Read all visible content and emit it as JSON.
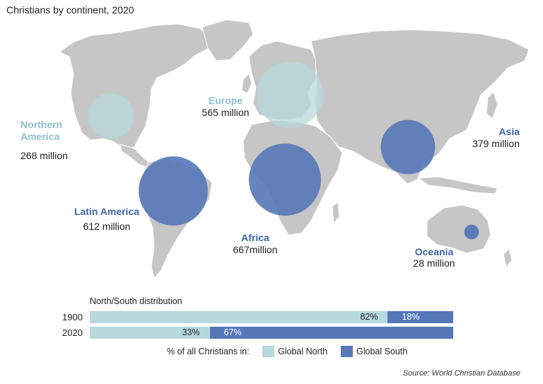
{
  "title": "Christians by continent, 2020",
  "colors": {
    "land": "#c6c6c6",
    "global_north": "#b7d8de",
    "global_south": "#5577b7",
    "north_label": "#8ec0cb",
    "south_label": "#3b67a6"
  },
  "regions": [
    {
      "id": "northern-america",
      "name_line1": "Northern",
      "name_line2": "America",
      "value": "268 million",
      "group": "north",
      "millions": 268
    },
    {
      "id": "europe",
      "name_line1": "Europe",
      "name_line2": "",
      "value": "565 million",
      "group": "north",
      "millions": 565
    },
    {
      "id": "asia",
      "name_line1": "Asia",
      "name_line2": "",
      "value": "379 million",
      "group": "south",
      "millions": 379
    },
    {
      "id": "latin-america",
      "name_line1": "Latin America",
      "name_line2": "",
      "value": "612 million",
      "group": "south",
      "millions": 612
    },
    {
      "id": "africa",
      "name_line1": "Africa",
      "name_line2": "",
      "value": "667million",
      "group": "south",
      "millions": 667
    },
    {
      "id": "oceania",
      "name_line1": "Oceania",
      "name_line2": "",
      "value": "28 million",
      "group": "south",
      "millions": 28
    }
  ],
  "distribution": {
    "title": "North/South distribution",
    "rows": [
      {
        "year": "1900",
        "north_pct": 82,
        "south_pct": 18,
        "north_label": "82%",
        "south_label": "18%"
      },
      {
        "year": "2020",
        "north_pct": 33,
        "south_pct": 67,
        "north_label": "33%",
        "south_label": "67%"
      }
    ],
    "legend_label": "% of all Christians in:",
    "legend_north": "Global North",
    "legend_south": "Global South"
  },
  "source": "Source: World Christian Database"
}
